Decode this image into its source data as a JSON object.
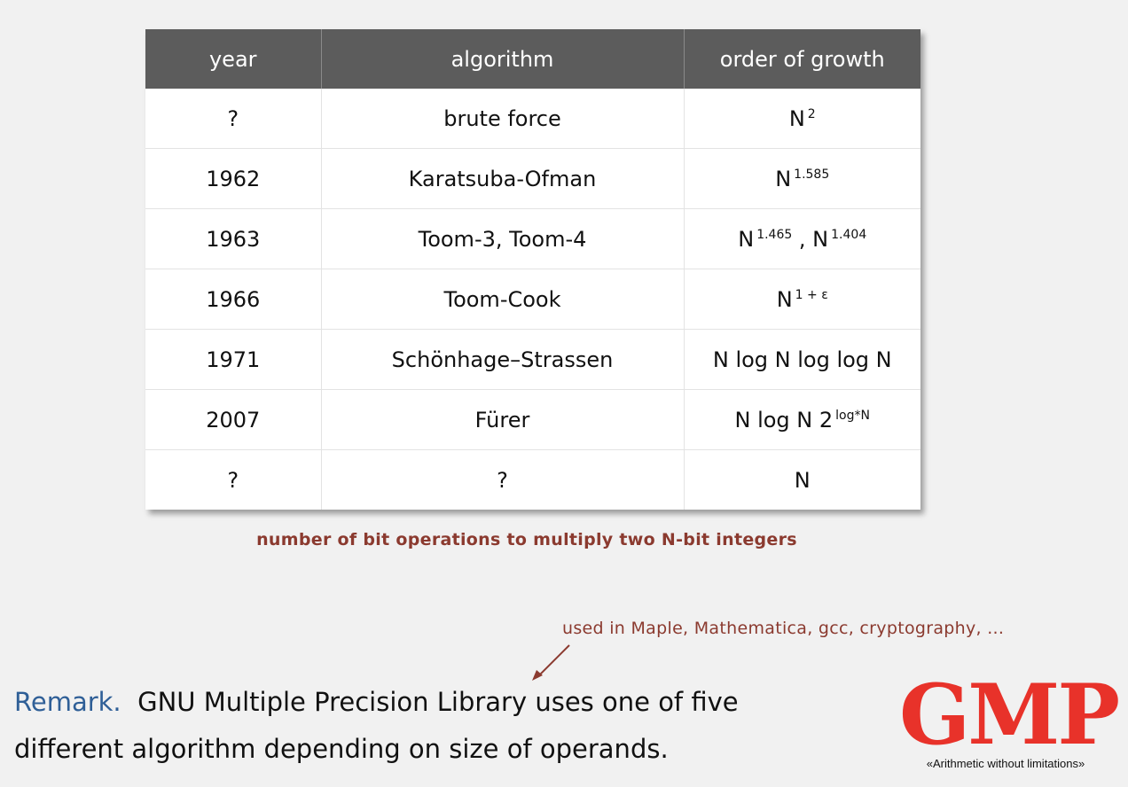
{
  "table": {
    "headers": [
      "year",
      "algorithm",
      "order of growth"
    ],
    "rows": [
      {
        "year": "?",
        "algorithm": "brute force",
        "growth": [
          {
            "t": "N"
          },
          {
            "s": "2"
          }
        ]
      },
      {
        "year": "1962",
        "algorithm": "Karatsuba-Ofman",
        "growth": [
          {
            "t": "N"
          },
          {
            "s": "1.585"
          }
        ]
      },
      {
        "year": "1963",
        "algorithm": "Toom-3, Toom-4",
        "growth": [
          {
            "t": "N"
          },
          {
            "s": "1.465"
          },
          {
            "t": " , N"
          },
          {
            "s": "1.404"
          }
        ]
      },
      {
        "year": "1966",
        "algorithm": "Toom-Cook",
        "growth": [
          {
            "t": "N"
          },
          {
            "s": "1 + ε"
          }
        ]
      },
      {
        "year": "1971",
        "algorithm": "Schönhage–Strassen",
        "growth": [
          {
            "t": "N log N log log N"
          }
        ]
      },
      {
        "year": "2007",
        "algorithm": "Fürer",
        "growth": [
          {
            "t": "N log N 2"
          },
          {
            "s": "log*N"
          }
        ]
      },
      {
        "year": "?",
        "algorithm": "?",
        "growth": [
          {
            "t": "N"
          }
        ]
      }
    ]
  },
  "caption": "number of bit operations to multiply two N-bit integers",
  "note": "used in Maple, Mathematica, gcc, cryptography, ...",
  "remark": {
    "keyword": "Remark.",
    "line1": "GNU Multiple Precision Library uses one of five",
    "line2": "different algorithm depending on size of operands."
  },
  "logo": {
    "text": "GMP",
    "tagline": "«Arithmetic without limitations»"
  },
  "colors": {
    "header_bg": "#5c5c5c",
    "caption": "#8b3a2f",
    "remark_keyword": "#2f5f97",
    "logo_red": "#e8322a"
  }
}
